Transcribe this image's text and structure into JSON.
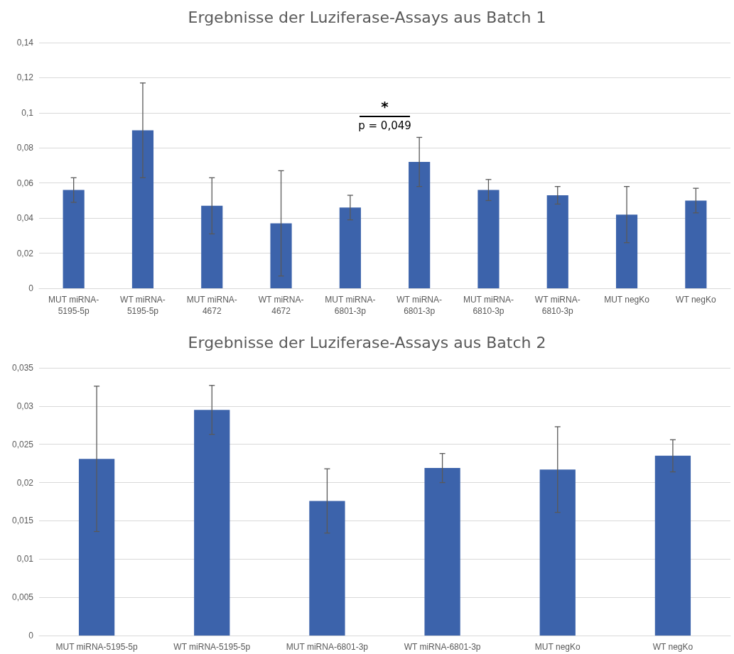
{
  "chart_data": [
    {
      "type": "bar",
      "title": "Ergebnisse der Luziferase-Assays aus Batch 1",
      "categories": [
        "MUT miRNA-5195-5p",
        "WT miRNA-5195-5p",
        "MUT miRNA-4672",
        "WT miRNA-4672",
        "MUT miRNA-6801-3p",
        "WT miRNA-6801-3p",
        "MUT miRNA-6810-3p",
        "WT miRNA-6810-3p",
        "MUT negKo",
        "WT negKo"
      ],
      "values": [
        0.056,
        0.09,
        0.047,
        0.037,
        0.046,
        0.072,
        0.056,
        0.053,
        0.042,
        0.05
      ],
      "errors": [
        0.007,
        0.027,
        0.016,
        0.03,
        0.007,
        0.014,
        0.006,
        0.005,
        0.016,
        0.007
      ],
      "color": "#3c63ab",
      "ylim": [
        0,
        0.14
      ],
      "yticks": [
        {
          "value": 0,
          "label": "0"
        },
        {
          "value": 0.02,
          "label": "0,02"
        },
        {
          "value": 0.04,
          "label": "0,04"
        },
        {
          "value": 0.06,
          "label": "0,06"
        },
        {
          "value": 0.08,
          "label": "0,08"
        },
        {
          "value": 0.1,
          "label": "0,1"
        },
        {
          "value": 0.12,
          "label": "0,12"
        },
        {
          "value": 0.14,
          "label": "0,14"
        }
      ],
      "grid": "y",
      "annotations": [
        "*",
        "p = 0,049"
      ]
    },
    {
      "type": "bar",
      "title": "Ergebnisse der Luziferase-Assays aus Batch 2",
      "categories": [
        "MUT miRNA-5195-5p",
        "WT miRNA-5195-5p",
        "MUT miRNA-6801-3p",
        "WT miRNA-6801-3p",
        "MUT negKo",
        "WT negKo"
      ],
      "values": [
        0.0231,
        0.0295,
        0.0176,
        0.0219,
        0.0217,
        0.0235
      ],
      "errors": [
        0.0095,
        0.0032,
        0.0042,
        0.0019,
        0.0056,
        0.0021
      ],
      "color": "#3c63ab",
      "ylim": [
        0,
        0.035
      ],
      "yticks": [
        {
          "value": 0,
          "label": "0"
        },
        {
          "value": 0.005,
          "label": "0,005"
        },
        {
          "value": 0.01,
          "label": "0,01"
        },
        {
          "value": 0.015,
          "label": "0,015"
        },
        {
          "value": 0.02,
          "label": "0,02"
        },
        {
          "value": 0.025,
          "label": "0,025"
        },
        {
          "value": 0.03,
          "label": "0,03"
        },
        {
          "value": 0.035,
          "label": "0,035"
        }
      ],
      "grid": "y"
    }
  ]
}
